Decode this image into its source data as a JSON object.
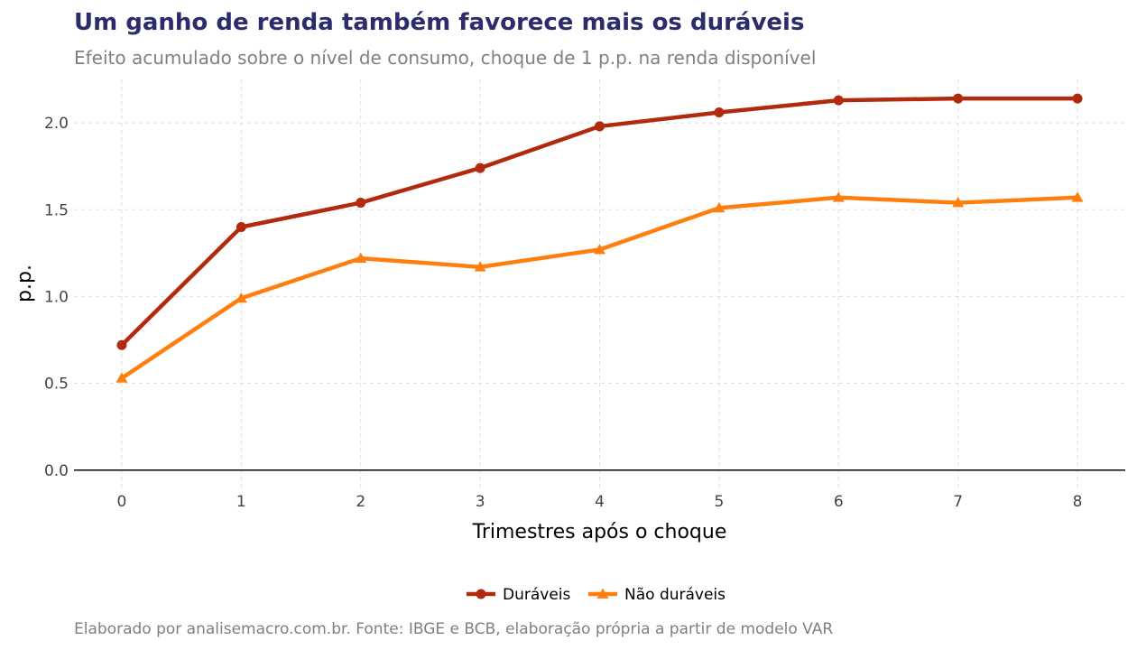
{
  "chart_data": {
    "type": "line",
    "title": "Um ganho de renda também favorece mais os duráveis",
    "subtitle": "Efeito acumulado sobre o nível de consumo, choque de 1 p.p. na renda disponível",
    "caption": "Elaborado por analisemacro.com.br. Fonte: IBGE e BCB, elaboração própria a partir de modelo VAR",
    "xlabel": "Trimestres após o choque",
    "ylabel": "p.p.",
    "x": [
      0,
      1,
      2,
      3,
      4,
      5,
      6,
      7,
      8
    ],
    "xlim": [
      -0.4,
      8.4
    ],
    "ylim": [
      -0.1,
      2.25
    ],
    "yticks": [
      0.0,
      0.5,
      1.0,
      1.5,
      2.0
    ],
    "ytick_labels": [
      "0.0",
      "0.5",
      "1.0",
      "1.5",
      "2.0"
    ],
    "xtick_labels": [
      "0",
      "1",
      "2",
      "3",
      "4",
      "5",
      "6",
      "7",
      "8"
    ],
    "grid": true,
    "legend_position": "bottom",
    "series": [
      {
        "name": "Duráveis",
        "color": "#b22a0e",
        "marker": "circle",
        "values": [
          0.72,
          1.4,
          1.54,
          1.74,
          1.98,
          2.06,
          2.13,
          2.14,
          2.14
        ]
      },
      {
        "name": "Não duráveis",
        "color": "#ff7f0e",
        "marker": "triangle",
        "values": [
          0.53,
          0.99,
          1.22,
          1.17,
          1.27,
          1.51,
          1.57,
          1.54,
          1.57
        ]
      }
    ]
  }
}
